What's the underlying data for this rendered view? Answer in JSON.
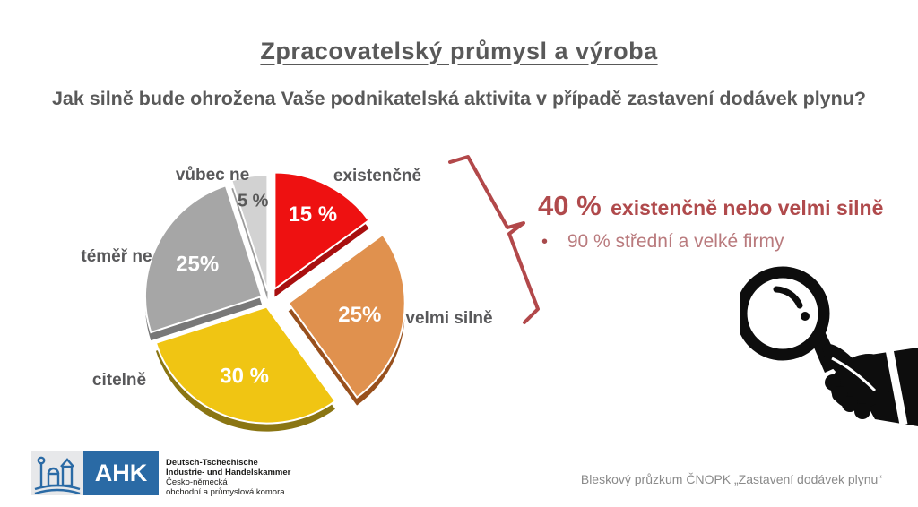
{
  "slide": {
    "title": "Zpracovatelský průmysl a výroba",
    "question": "Jak silně bude ohrožena Vaše podnikatelská aktivita v případě zastavení dodávek plynu?"
  },
  "chart_data": {
    "type": "pie",
    "title": "Jak silně bude ohrožena Vaše podnikatelská aktivita v případě zastavení dodávek plynu?",
    "categories": [
      "existenčně",
      "velmi silně",
      "citelně",
      "téměř ne",
      "vůbec ne"
    ],
    "values": [
      15,
      25,
      30,
      25,
      5
    ],
    "labels": [
      "15 %",
      "25%",
      "30 %",
      "25%",
      "5 %"
    ],
    "colors": [
      "#ee1111",
      "#e0914e",
      "#f0c513",
      "#a6a6a6",
      "#d2d2d2"
    ],
    "depth_colors": [
      "#a80f0f",
      "#98501d",
      "#8a7513",
      "#787878",
      "#9b9b9b"
    ],
    "label_colors": [
      "#ffffff",
      "#ffffff",
      "#ffffff",
      "#ffffff",
      "#595959"
    ],
    "label_radius": [
      0.72,
      0.62,
      0.62,
      0.62,
      0.8
    ],
    "label_sizes": [
      24,
      24,
      24,
      24,
      20
    ],
    "explode": [
      14,
      22,
      8,
      9,
      10
    ],
    "start_angle_deg": 0,
    "direction": "clockwise",
    "style": "3d-exploded",
    "legend_position": "around-slices"
  },
  "annotation": {
    "headline_value": "40 %",
    "headline_text": "existenčně nebo velmi silně",
    "bullet_dot": "•",
    "bullet": "90 % střední a velké firmy",
    "accent_color": "#b04a4c"
  },
  "footer": {
    "logo_abbr": "AHK",
    "logo_line1": "Deutsch-Tschechische",
    "logo_line2": "Industrie- und Handelskammer",
    "logo_line3": "Česko-německá",
    "logo_line4": "obchodní a průmyslová komora",
    "source": "Bleskový průzkum ČNOPK „Zastavení dodávek plynu“"
  }
}
